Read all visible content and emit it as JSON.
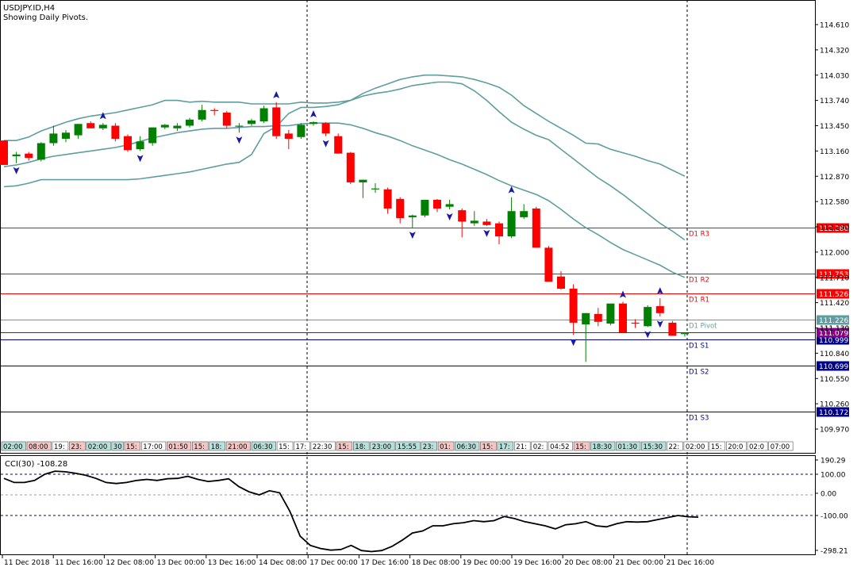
{
  "header": {
    "symbol": "USDJPY.ID,H4",
    "note": "Showing Daily Pivots."
  },
  "colors": {
    "bull": "#008000",
    "bear": "#ff0000",
    "band": "#5f9ea0",
    "pivot_red": "#ff0000",
    "pivot_blue": "#00008b",
    "pivot_grey": "#5f9ea0",
    "fractal": "#1a1aa6",
    "cci": "#000000"
  },
  "chart_data": [
    {
      "type": "candlestick",
      "title": "USDJPY.ID,H4",
      "subtitle": "Showing Daily Pivots.",
      "y_ticks": [
        "114.610",
        "114.320",
        "114.030",
        "113.740",
        "113.450",
        "113.160",
        "112.870",
        "112.580",
        "112.290",
        "112.000",
        "111.710",
        "111.420",
        "111.130",
        "110.840",
        "110.550",
        "110.260",
        "109.970"
      ],
      "ylim": [
        109.85,
        114.78
      ],
      "candles": [
        {
          "o": 113.28,
          "h": 113.28,
          "l": 113.0,
          "c": 113.0
        },
        {
          "o": 113.1,
          "h": 113.15,
          "l": 113.02,
          "c": 113.12
        },
        {
          "o": 113.13,
          "h": 113.15,
          "l": 113.05,
          "c": 113.08
        },
        {
          "o": 113.06,
          "h": 113.26,
          "l": 113.04,
          "c": 113.25
        },
        {
          "o": 113.25,
          "h": 113.45,
          "l": 113.22,
          "c": 113.36
        },
        {
          "o": 113.3,
          "h": 113.4,
          "l": 113.26,
          "c": 113.37
        },
        {
          "o": 113.34,
          "h": 113.47,
          "l": 113.3,
          "c": 113.47
        },
        {
          "o": 113.48,
          "h": 113.5,
          "l": 113.42,
          "c": 113.42
        },
        {
          "o": 113.42,
          "h": 113.48,
          "l": 113.4,
          "c": 113.46
        },
        {
          "o": 113.45,
          "h": 113.48,
          "l": 113.27,
          "c": 113.3
        },
        {
          "o": 113.33,
          "h": 113.35,
          "l": 113.15,
          "c": 113.17
        },
        {
          "o": 113.18,
          "h": 113.33,
          "l": 113.16,
          "c": 113.27
        },
        {
          "o": 113.25,
          "h": 113.43,
          "l": 113.22,
          "c": 113.43
        },
        {
          "o": 113.43,
          "h": 113.47,
          "l": 113.41,
          "c": 113.46
        },
        {
          "o": 113.42,
          "h": 113.48,
          "l": 113.39,
          "c": 113.45
        },
        {
          "o": 113.45,
          "h": 113.54,
          "l": 113.43,
          "c": 113.52
        },
        {
          "o": 113.52,
          "h": 113.69,
          "l": 113.5,
          "c": 113.63
        },
        {
          "o": 113.63,
          "h": 113.65,
          "l": 113.57,
          "c": 113.62
        },
        {
          "o": 113.6,
          "h": 113.62,
          "l": 113.42,
          "c": 113.45
        },
        {
          "o": 113.45,
          "h": 113.48,
          "l": 113.37,
          "c": 113.45
        },
        {
          "o": 113.47,
          "h": 113.53,
          "l": 113.45,
          "c": 113.51
        },
        {
          "o": 113.5,
          "h": 113.68,
          "l": 113.48,
          "c": 113.65
        },
        {
          "o": 113.66,
          "h": 113.72,
          "l": 113.3,
          "c": 113.33
        },
        {
          "o": 113.36,
          "h": 113.4,
          "l": 113.18,
          "c": 113.3
        },
        {
          "o": 113.32,
          "h": 113.48,
          "l": 113.3,
          "c": 113.46
        },
        {
          "o": 113.47,
          "h": 113.5,
          "l": 113.45,
          "c": 113.49
        },
        {
          "o": 113.48,
          "h": 113.49,
          "l": 113.33,
          "c": 113.36
        },
        {
          "o": 113.33,
          "h": 113.36,
          "l": 113.13,
          "c": 113.13
        },
        {
          "o": 113.14,
          "h": 113.15,
          "l": 112.78,
          "c": 112.8
        },
        {
          "o": 112.8,
          "h": 112.83,
          "l": 112.62,
          "c": 112.83
        },
        {
          "o": 112.73,
          "h": 112.79,
          "l": 112.68,
          "c": 112.73
        },
        {
          "o": 112.72,
          "h": 112.74,
          "l": 112.44,
          "c": 112.5
        },
        {
          "o": 112.61,
          "h": 112.63,
          "l": 112.33,
          "c": 112.39
        },
        {
          "o": 112.4,
          "h": 112.43,
          "l": 112.28,
          "c": 112.42
        },
        {
          "o": 112.42,
          "h": 112.6,
          "l": 112.4,
          "c": 112.6
        },
        {
          "o": 112.6,
          "h": 112.61,
          "l": 112.46,
          "c": 112.5
        },
        {
          "o": 112.52,
          "h": 112.6,
          "l": 112.49,
          "c": 112.55
        },
        {
          "o": 112.48,
          "h": 112.5,
          "l": 112.17,
          "c": 112.35
        },
        {
          "o": 112.33,
          "h": 112.47,
          "l": 112.3,
          "c": 112.36
        },
        {
          "o": 112.35,
          "h": 112.38,
          "l": 112.3,
          "c": 112.31
        },
        {
          "o": 112.33,
          "h": 112.35,
          "l": 112.09,
          "c": 112.18
        },
        {
          "o": 112.18,
          "h": 112.63,
          "l": 112.16,
          "c": 112.47
        },
        {
          "o": 112.4,
          "h": 112.55,
          "l": 112.38,
          "c": 112.47
        },
        {
          "o": 112.5,
          "h": 112.52,
          "l": 112.05,
          "c": 112.05
        },
        {
          "o": 112.05,
          "h": 112.07,
          "l": 111.66,
          "c": 111.66
        },
        {
          "o": 111.72,
          "h": 111.78,
          "l": 111.57,
          "c": 111.58
        },
        {
          "o": 111.58,
          "h": 111.63,
          "l": 111.05,
          "c": 111.19
        },
        {
          "o": 111.17,
          "h": 111.3,
          "l": 110.74,
          "c": 111.3
        },
        {
          "o": 111.29,
          "h": 111.36,
          "l": 111.15,
          "c": 111.2
        },
        {
          "o": 111.18,
          "h": 111.4,
          "l": 111.16,
          "c": 111.41
        },
        {
          "o": 111.41,
          "h": 111.43,
          "l": 111.07,
          "c": 111.08
        },
        {
          "o": 111.19,
          "h": 111.23,
          "l": 111.13,
          "c": 111.18
        },
        {
          "o": 111.15,
          "h": 111.39,
          "l": 111.14,
          "c": 111.37
        },
        {
          "o": 111.38,
          "h": 111.47,
          "l": 111.26,
          "c": 111.3
        },
        {
          "o": 111.19,
          "h": 111.21,
          "l": 111.04,
          "c": 111.04
        },
        {
          "o": 111.06,
          "h": 111.08,
          "l": 111.03,
          "c": 111.07
        }
      ],
      "bollinger_upper": [
        113.28,
        113.28,
        113.32,
        113.39,
        113.44,
        113.49,
        113.53,
        113.56,
        113.58,
        113.6,
        113.63,
        113.66,
        113.69,
        113.74,
        113.74,
        113.72,
        113.73,
        113.72,
        113.72,
        113.72,
        113.7,
        113.7,
        113.7,
        113.7,
        113.72,
        113.71,
        113.71,
        113.72,
        113.74,
        113.82,
        113.88,
        113.93,
        113.98,
        114.01,
        114.03,
        114.03,
        114.02,
        114.01,
        113.98,
        113.94,
        113.89,
        113.8,
        113.68,
        113.59,
        113.5,
        113.42,
        113.34,
        113.25,
        113.24,
        113.18,
        113.14,
        113.1,
        113.05,
        113.01,
        112.94,
        112.87
      ],
      "bollinger_middle": [
        112.98,
        113.0,
        113.03,
        113.07,
        113.1,
        113.12,
        113.14,
        113.16,
        113.18,
        113.2,
        113.23,
        113.27,
        113.31,
        113.34,
        113.37,
        113.39,
        113.41,
        113.42,
        113.42,
        113.43,
        113.44,
        113.44,
        113.45,
        113.45,
        113.47,
        113.48,
        113.48,
        113.48,
        113.46,
        113.42,
        113.37,
        113.33,
        113.28,
        113.22,
        113.17,
        113.12,
        113.06,
        113.01,
        112.95,
        112.89,
        112.82,
        112.76,
        112.71,
        112.66,
        112.59,
        112.49,
        112.38,
        112.28,
        112.2,
        112.11,
        112.03,
        111.97,
        111.91,
        111.85,
        111.77,
        111.71
      ],
      "bollinger_lower": [
        112.75,
        112.76,
        112.79,
        112.83,
        112.83,
        112.83,
        112.83,
        112.83,
        112.83,
        112.83,
        112.83,
        112.84,
        112.86,
        112.88,
        112.9,
        112.92,
        112.95,
        112.98,
        113.01,
        113.03,
        113.12,
        113.36,
        113.44,
        113.59,
        113.66,
        113.66,
        113.67,
        113.69,
        113.74,
        113.79,
        113.82,
        113.84,
        113.87,
        113.91,
        113.93,
        113.95,
        113.95,
        113.93,
        113.85,
        113.74,
        113.61,
        113.49,
        113.41,
        113.34,
        113.29,
        113.18,
        113.07,
        112.96,
        112.85,
        112.76,
        112.66,
        112.55,
        112.44,
        112.33,
        112.24,
        112.14
      ],
      "fractals_up": [
        8,
        22,
        25,
        41,
        50,
        53
      ],
      "fractals_down": [
        1,
        11,
        19,
        26,
        33,
        36,
        39,
        46,
        52,
        53
      ],
      "pivot_levels": [
        {
          "label": "D1 R3",
          "value": "112.280",
          "color": "red"
        },
        {
          "label": "D1 R2",
          "value": "111.753",
          "color": "red"
        },
        {
          "label": "D1 R1",
          "value": "111.526",
          "color": "red"
        },
        {
          "label": "D1 Pivot",
          "value": "111.226",
          "color": "grey"
        },
        {
          "label": "D1 S1",
          "value": "110.999",
          "color": "blue"
        },
        {
          "label": "D1 S2",
          "value": "110.699",
          "color": "blue"
        },
        {
          "label": "D1 S3",
          "value": "110.172",
          "color": "blue"
        }
      ],
      "current_price": "111.079",
      "cut_off_label": "111.130"
    },
    {
      "type": "line",
      "title": "CCI(30) -108.28",
      "y_ticks": [
        "190.29",
        "100.00",
        "0.00",
        "-100.00",
        "-298.21"
      ],
      "levels": [
        100,
        0,
        -100
      ],
      "ylim": [
        -298.21,
        190.29
      ],
      "values": [
        80,
        60,
        60,
        70,
        100,
        115,
        112,
        105,
        95,
        80,
        60,
        55,
        60,
        70,
        75,
        70,
        78,
        80,
        90,
        75,
        65,
        70,
        78,
        40,
        15,
        0,
        20,
        10,
        -80,
        -200,
        -245,
        -260,
        -268,
        -265,
        -245,
        -270,
        -275,
        -270,
        -250,
        -220,
        -185,
        -175,
        -150,
        -150,
        -140,
        -135,
        -125,
        -130,
        -125,
        -105,
        -115,
        -130,
        -140,
        -150,
        -165,
        -145,
        -140,
        -130,
        -150,
        -155,
        -140,
        -130,
        -132,
        -130,
        -120,
        -110,
        -100,
        -106,
        -108
      ]
    }
  ],
  "time_labels_top": [
    {
      "text": "02:00",
      "bg": "teal"
    },
    {
      "text": "08:00",
      "bg": "pink"
    },
    {
      "text": "19:",
      "bg": "none"
    },
    {
      "text": "23:",
      "bg": "pink"
    },
    {
      "text": "02:00",
      "bg": "teal"
    },
    {
      "text": "30",
      "bg": "teal"
    },
    {
      "text": "15:",
      "bg": "pink"
    },
    {
      "text": "17:00",
      "bg": "none"
    },
    {
      "text": "01:50",
      "bg": "pink"
    },
    {
      "text": "15:",
      "bg": "pink"
    },
    {
      "text": "18:",
      "bg": "teal"
    },
    {
      "text": "21:00",
      "bg": "pink"
    },
    {
      "text": "06:30",
      "bg": "teal"
    },
    {
      "text": "15:",
      "bg": "none"
    },
    {
      "text": "17:",
      "bg": "none"
    },
    {
      "text": "22:30",
      "bg": "none"
    },
    {
      "text": "15:",
      "bg": "pink"
    },
    {
      "text": "18:",
      "bg": "teal"
    },
    {
      "text": "23:00",
      "bg": "teal"
    },
    {
      "text": "15:55",
      "bg": "teal"
    },
    {
      "text": "23:",
      "bg": "teal"
    },
    {
      "text": "01:",
      "bg": "pink"
    },
    {
      "text": "06:30",
      "bg": "teal"
    },
    {
      "text": "15:",
      "bg": "pink"
    },
    {
      "text": "17:",
      "bg": "teal"
    },
    {
      "text": "21:",
      "bg": "none"
    },
    {
      "text": "02:",
      "bg": "none"
    },
    {
      "text": "04:52",
      "bg": "none"
    },
    {
      "text": "15:",
      "bg": "pink"
    },
    {
      "text": "18:30",
      "bg": "teal"
    },
    {
      "text": "01:30",
      "bg": "teal"
    },
    {
      "text": "15:30",
      "bg": "teal"
    },
    {
      "text": "22:",
      "bg": "none"
    },
    {
      "text": "02:00",
      "bg": "none"
    },
    {
      "text": "15:",
      "bg": "none"
    },
    {
      "text": "20:0",
      "bg": "none"
    },
    {
      "text": "02:0",
      "bg": "none"
    },
    {
      "text": "07:00",
      "bg": "none"
    }
  ],
  "x_labels": [
    "11 Dec 2018",
    "11 Dec 16:00",
    "12 Dec 08:00",
    "13 Dec 00:00",
    "13 Dec 16:00",
    "14 Dec 08:00",
    "17 Dec 00:00",
    "17 Dec 16:00",
    "18 Dec 08:00",
    "19 Dec 00:00",
    "19 Dec 16:00",
    "20 Dec 08:00",
    "21 Dec 00:00",
    "21 Dec 16:00"
  ]
}
